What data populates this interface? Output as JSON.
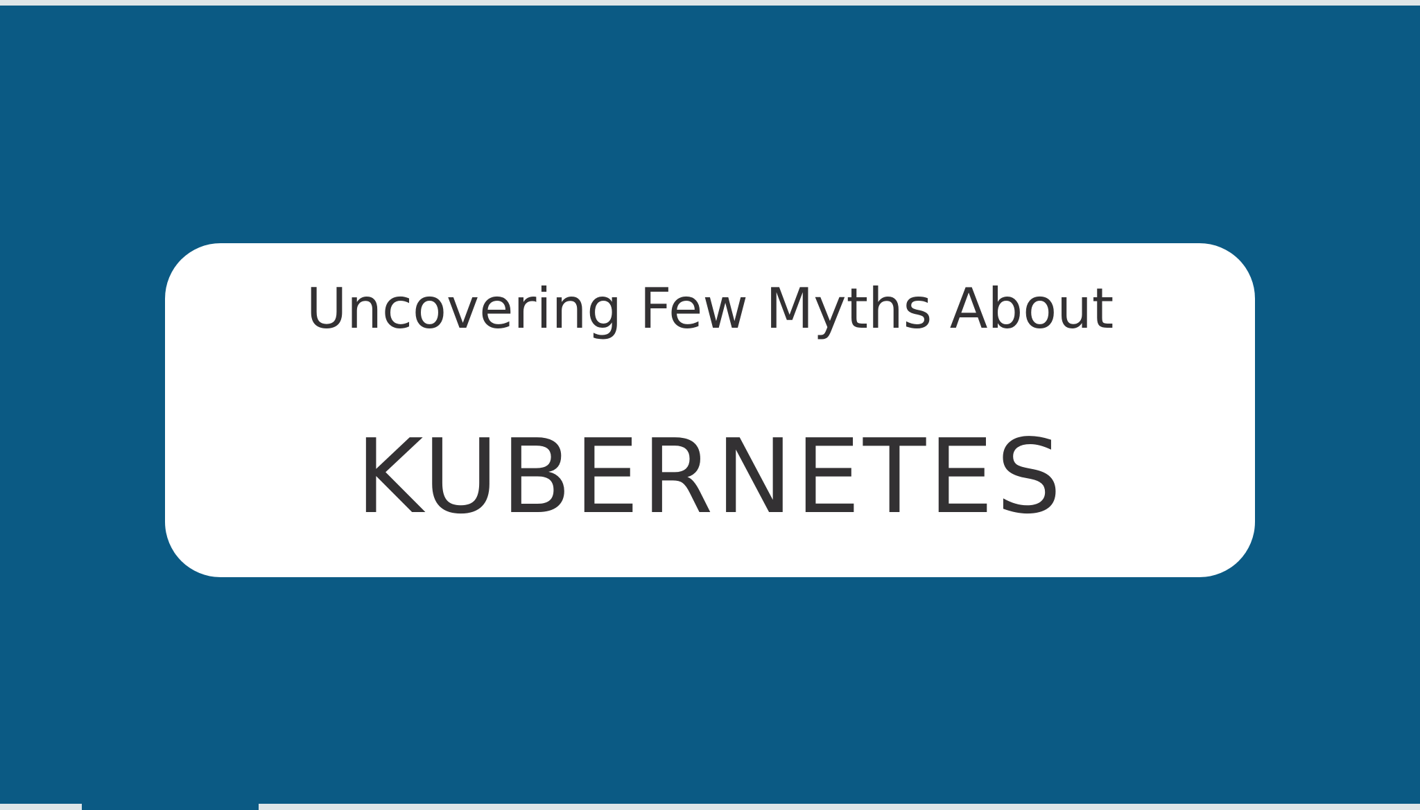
{
  "banner": {
    "subtitle": "Uncovering Few Myths About",
    "title": "KUBERNETES"
  },
  "colors": {
    "background": "#0b5a84",
    "card": "#ffffff",
    "text": "#333133",
    "border": "#dfe6e8"
  }
}
